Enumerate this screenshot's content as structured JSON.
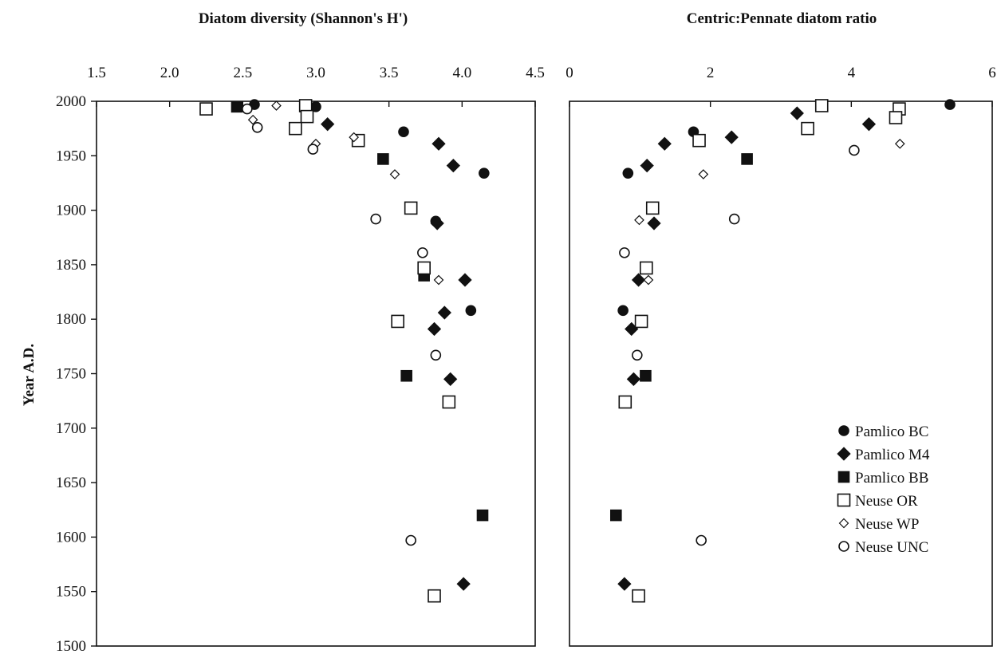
{
  "chart_data": [
    {
      "type": "scatter",
      "title": "Diatom diversity (Shannon's H')",
      "ylabel": "Year A.D.",
      "xlim": [
        1.5,
        4.5
      ],
      "ylim": [
        1500,
        2000
      ],
      "y_inverted": false,
      "x_ticks": [
        "1.5",
        "2.0",
        "2.5",
        "3.0",
        "3.5",
        "4.0",
        "4.5"
      ],
      "x_tick_values": [
        1.5,
        2.0,
        2.5,
        3.0,
        3.5,
        4.0,
        4.5
      ],
      "y_ticks": [
        "2000",
        "1950",
        "1900",
        "1850",
        "1800",
        "1750",
        "1700",
        "1650",
        "1600",
        "1550",
        "1500"
      ],
      "y_tick_values": [
        2000,
        1950,
        1900,
        1850,
        1800,
        1750,
        1700,
        1650,
        1600,
        1550,
        1500
      ],
      "grid": false,
      "series": [
        {
          "name": "Pamlico BC",
          "points": [
            [
              2.58,
              1997
            ],
            [
              3.0,
              1995
            ],
            [
              3.6,
              1972
            ],
            [
              4.15,
              1934
            ],
            [
              4.06,
              1808
            ],
            [
              3.82,
              1890
            ]
          ]
        },
        {
          "name": "Pamlico M4",
          "points": [
            [
              3.08,
              1979
            ],
            [
              3.84,
              1961
            ],
            [
              3.94,
              1941
            ],
            [
              3.83,
              1888
            ],
            [
              4.02,
              1836
            ],
            [
              3.88,
              1806
            ],
            [
              3.81,
              1791
            ],
            [
              3.92,
              1745
            ],
            [
              4.01,
              1557
            ]
          ]
        },
        {
          "name": "Pamlico BB",
          "points": [
            [
              2.46,
              1995
            ],
            [
              3.46,
              1947
            ],
            [
              3.74,
              1840
            ],
            [
              3.62,
              1748
            ],
            [
              4.14,
              1620
            ]
          ]
        },
        {
          "name": "Neuse OR",
          "points": [
            [
              2.25,
              1993
            ],
            [
              2.93,
              1996
            ],
            [
              2.94,
              1986
            ],
            [
              2.86,
              1975
            ],
            [
              3.29,
              1964
            ],
            [
              3.65,
              1902
            ],
            [
              3.74,
              1847
            ],
            [
              3.56,
              1798
            ],
            [
              3.91,
              1724
            ],
            [
              3.81,
              1546
            ]
          ]
        },
        {
          "name": "Neuse WP",
          "points": [
            [
              2.73,
              1996
            ],
            [
              2.57,
              1983
            ],
            [
              3.0,
              1961
            ],
            [
              3.26,
              1967
            ],
            [
              3.54,
              1933
            ],
            [
              3.84,
              1836
            ]
          ]
        },
        {
          "name": "Neuse UNC",
          "points": [
            [
              2.53,
              1993
            ],
            [
              2.6,
              1976
            ],
            [
              2.98,
              1956
            ],
            [
              3.41,
              1892
            ],
            [
              3.73,
              1861
            ],
            [
              3.82,
              1767
            ],
            [
              3.65,
              1597
            ]
          ]
        }
      ]
    },
    {
      "type": "scatter",
      "title": "Centric:Pennate diatom ratio",
      "xlim": [
        0,
        6
      ],
      "ylim": [
        1500,
        2000
      ],
      "x_ticks": [
        "0",
        "2",
        "4",
        "6"
      ],
      "x_tick_values": [
        0,
        2,
        4,
        6
      ],
      "grid": false,
      "legend": "bottom-right",
      "series": [
        {
          "name": "Pamlico BC",
          "points": [
            [
              5.4,
              1997
            ],
            [
              1.76,
              1972
            ],
            [
              0.83,
              1934
            ],
            [
              0.76,
              1808
            ]
          ]
        },
        {
          "name": "Pamlico M4",
          "points": [
            [
              3.23,
              1989
            ],
            [
              4.25,
              1979
            ],
            [
              2.3,
              1967
            ],
            [
              1.35,
              1961
            ],
            [
              1.1,
              1941
            ],
            [
              1.2,
              1888
            ],
            [
              0.98,
              1836
            ],
            [
              0.88,
              1791
            ],
            [
              0.91,
              1745
            ],
            [
              0.78,
              1557
            ]
          ]
        },
        {
          "name": "Pamlico BB",
          "points": [
            [
              2.52,
              1947
            ],
            [
              1.08,
              1748
            ],
            [
              0.66,
              1620
            ]
          ]
        },
        {
          "name": "Neuse OR",
          "points": [
            [
              3.58,
              1996
            ],
            [
              4.68,
              1993
            ],
            [
              4.63,
              1985
            ],
            [
              3.38,
              1975
            ],
            [
              1.84,
              1964
            ],
            [
              1.18,
              1902
            ],
            [
              1.09,
              1847
            ],
            [
              1.02,
              1798
            ],
            [
              0.79,
              1724
            ],
            [
              0.98,
              1546
            ]
          ]
        },
        {
          "name": "Neuse WP",
          "points": [
            [
              4.69,
              1961
            ],
            [
              1.9,
              1933
            ],
            [
              0.99,
              1891
            ],
            [
              1.12,
              1836
            ]
          ]
        },
        {
          "name": "Neuse UNC",
          "points": [
            [
              4.04,
              1955
            ],
            [
              2.34,
              1892
            ],
            [
              0.78,
              1861
            ],
            [
              0.96,
              1767
            ],
            [
              1.87,
              1597
            ]
          ]
        }
      ]
    }
  ],
  "legend": [
    {
      "name": "Pamlico BC",
      "marker": "circle-filled"
    },
    {
      "name": "Pamlico M4",
      "marker": "diamond-filled"
    },
    {
      "name": "Pamlico BB",
      "marker": "square-filled"
    },
    {
      "name": "Neuse OR",
      "marker": "square-open"
    },
    {
      "name": "Neuse WP",
      "marker": "diamond-open"
    },
    {
      "name": "Neuse UNC",
      "marker": "circle-open"
    }
  ],
  "colors": {
    "ink": "#111111",
    "open_fill": "#ffffff"
  }
}
